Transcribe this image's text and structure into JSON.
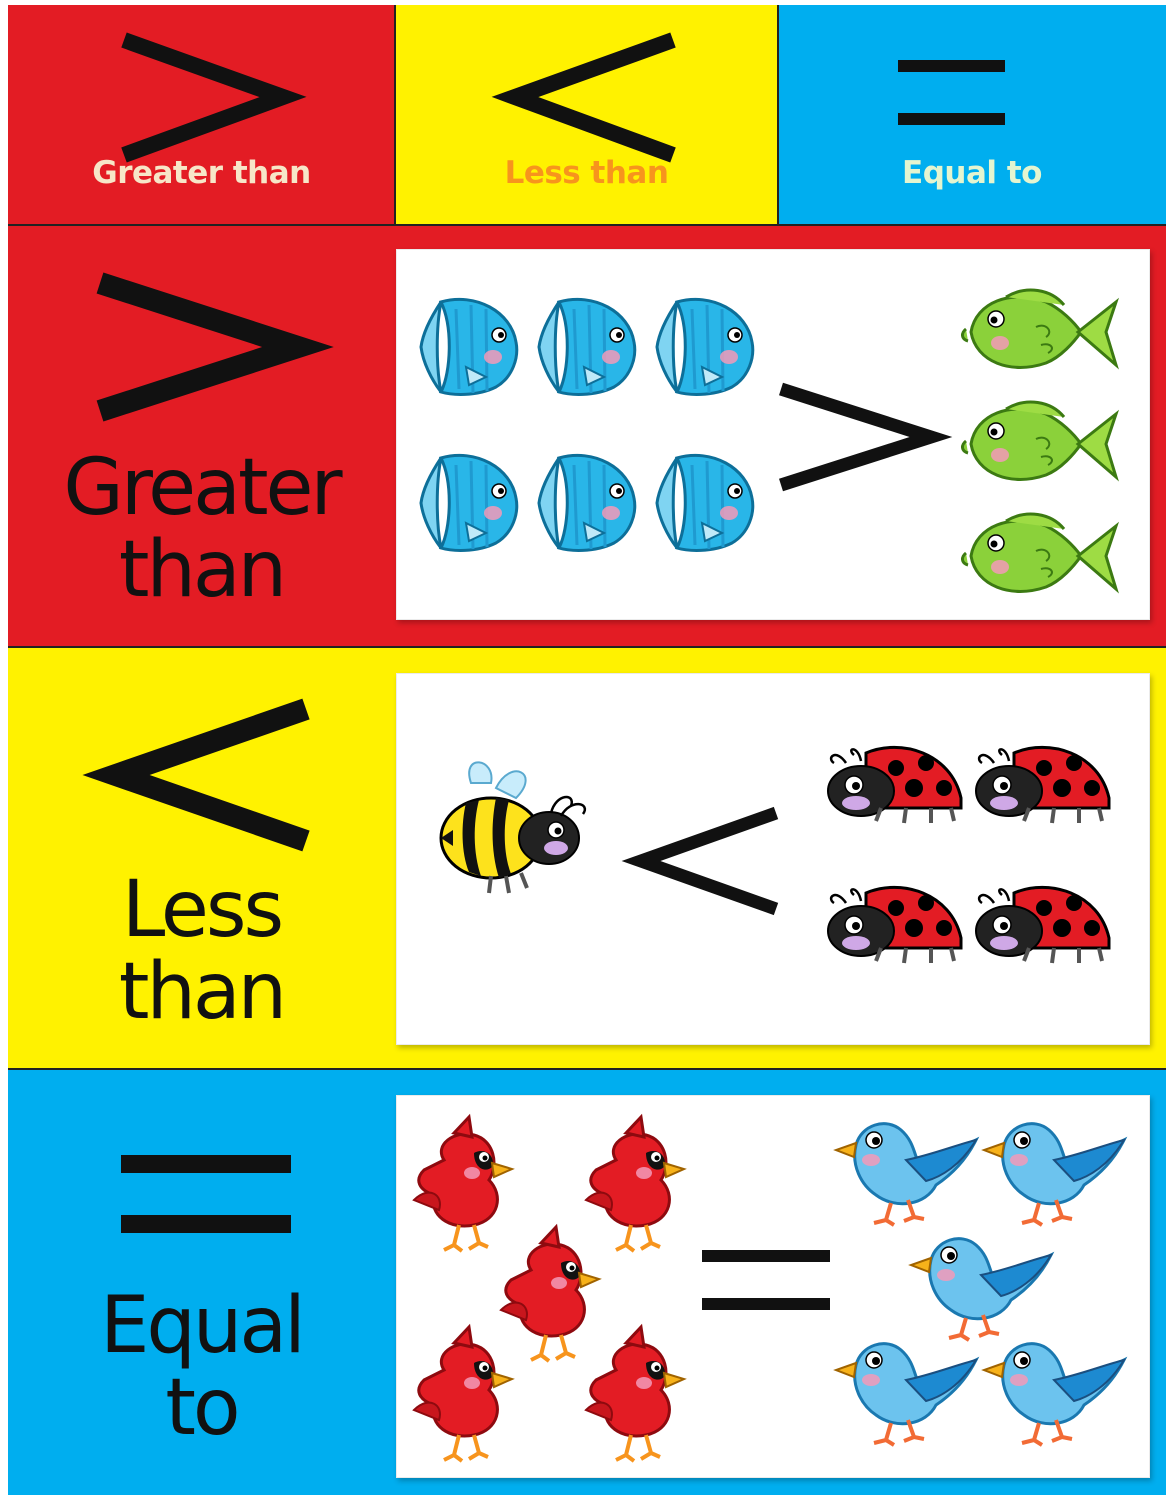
{
  "header": {
    "greater": {
      "symbol": ">",
      "label": "Greater than",
      "bg": "#e31c24",
      "label_color": "#f7e6c8"
    },
    "less": {
      "symbol": "<",
      "label": "Less than",
      "bg": "#fff200",
      "label_color": "#f7941d"
    },
    "equal": {
      "symbol": "=",
      "label": "Equal to",
      "bg": "#00aeef",
      "label_color": "#e4f5d0"
    }
  },
  "rows": {
    "greater": {
      "label_line1": "Greater",
      "label_line2": "than",
      "bg": "#e31c24",
      "left_group": {
        "animal": "blue-fish",
        "count": 6
      },
      "right_group": {
        "animal": "green-fish",
        "count": 3
      },
      "operator": ">"
    },
    "less": {
      "label_line1": "Less",
      "label_line2": "than",
      "bg": "#fff200",
      "left_group": {
        "animal": "bumblebee",
        "count": 1
      },
      "right_group": {
        "animal": "ladybug",
        "count": 4
      },
      "operator": "<"
    },
    "equal": {
      "label_line1": "Equal",
      "label_line2": "to",
      "bg": "#00aeef",
      "left_group": {
        "animal": "red-cardinal",
        "count": 5
      },
      "right_group": {
        "animal": "bluebird",
        "count": 5
      },
      "operator": "="
    }
  }
}
